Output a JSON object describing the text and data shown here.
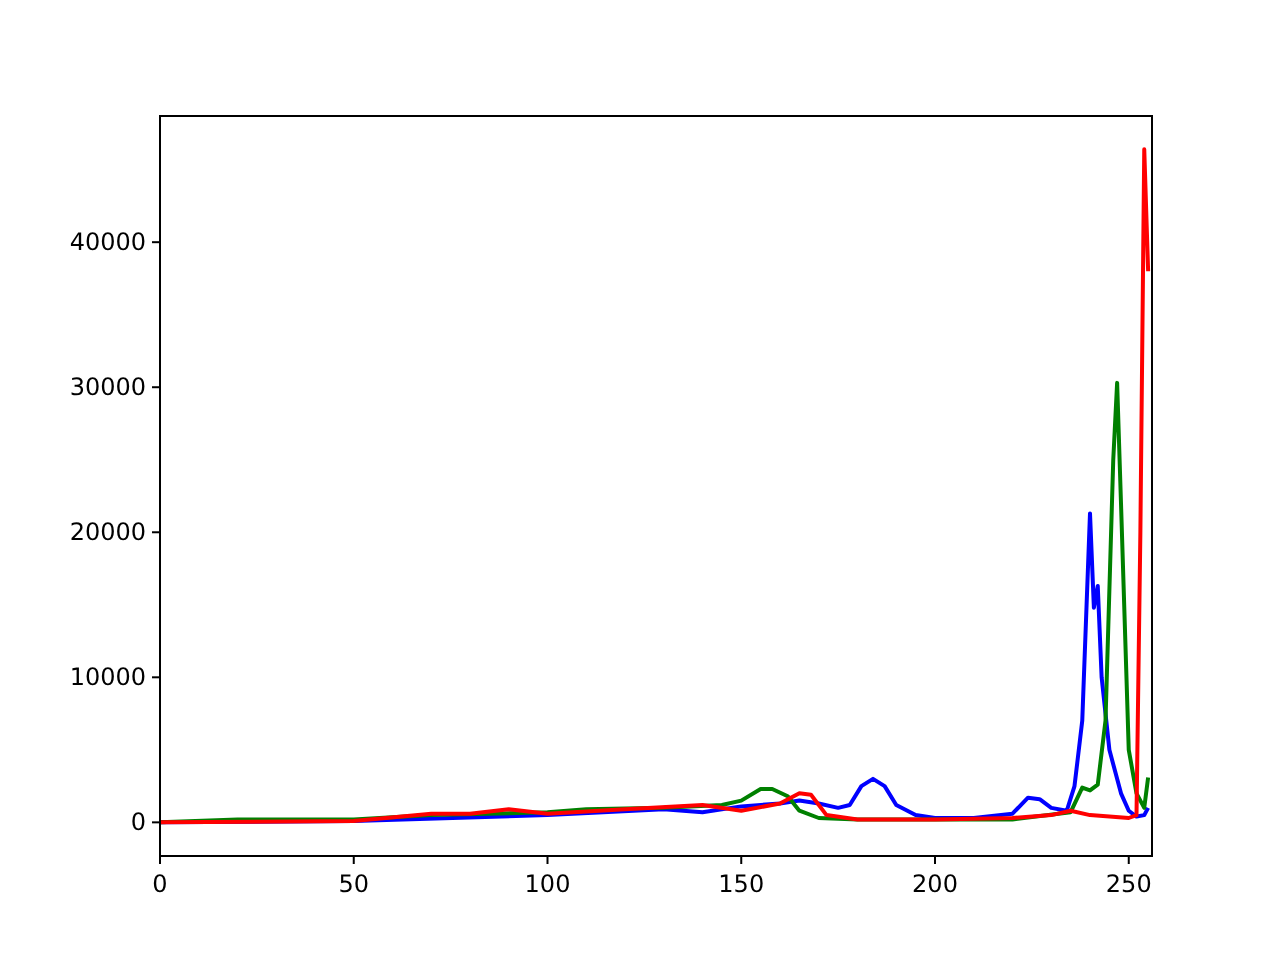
{
  "chart_data": {
    "type": "line",
    "xlim": [
      0,
      256
    ],
    "ylim": [
      -2320,
      48700
    ],
    "xticks": [
      0,
      50,
      100,
      150,
      200,
      250
    ],
    "yticks": [
      0,
      10000,
      20000,
      30000,
      40000
    ],
    "grid": false,
    "series": [
      {
        "color": "#0000ff",
        "x": [
          0,
          50,
          100,
          130,
          140,
          150,
          160,
          165,
          170,
          175,
          178,
          181,
          184,
          187,
          190,
          195,
          200,
          210,
          220,
          224,
          227,
          230,
          234,
          236,
          238,
          240,
          241,
          242,
          243,
          245,
          248,
          250,
          252,
          254,
          255
        ],
        "values": [
          0,
          100,
          500,
          900,
          700,
          1100,
          1300,
          1500,
          1300,
          1000,
          1200,
          2500,
          3000,
          2500,
          1200,
          500,
          300,
          300,
          600,
          1700,
          1600,
          1000,
          800,
          2500,
          7000,
          21300,
          14800,
          16300,
          10000,
          5000,
          2000,
          800,
          400,
          500,
          1000
        ]
      },
      {
        "color": "#008000",
        "x": [
          0,
          20,
          50,
          70,
          100,
          110,
          130,
          145,
          150,
          155,
          158,
          162,
          165,
          170,
          180,
          200,
          220,
          235,
          238,
          240,
          242,
          244,
          246,
          247,
          248,
          250,
          252,
          254,
          255
        ],
        "values": [
          0,
          200,
          200,
          500,
          700,
          900,
          1000,
          1200,
          1500,
          2300,
          2300,
          1800,
          800,
          300,
          200,
          200,
          200,
          700,
          2400,
          2200,
          2600,
          7000,
          25000,
          30300,
          22000,
          5000,
          2000,
          1000,
          3100
        ]
      },
      {
        "color": "#ff0000",
        "x": [
          0,
          50,
          70,
          80,
          90,
          100,
          120,
          140,
          150,
          160,
          165,
          168,
          172,
          180,
          200,
          220,
          230,
          235,
          240,
          250,
          252,
          253,
          254,
          255
        ],
        "values": [
          0,
          100,
          600,
          600,
          900,
          600,
          900,
          1200,
          800,
          1300,
          2000,
          1900,
          500,
          200,
          200,
          300,
          500,
          800,
          500,
          300,
          500,
          20000,
          46400,
          38000
        ]
      }
    ]
  }
}
